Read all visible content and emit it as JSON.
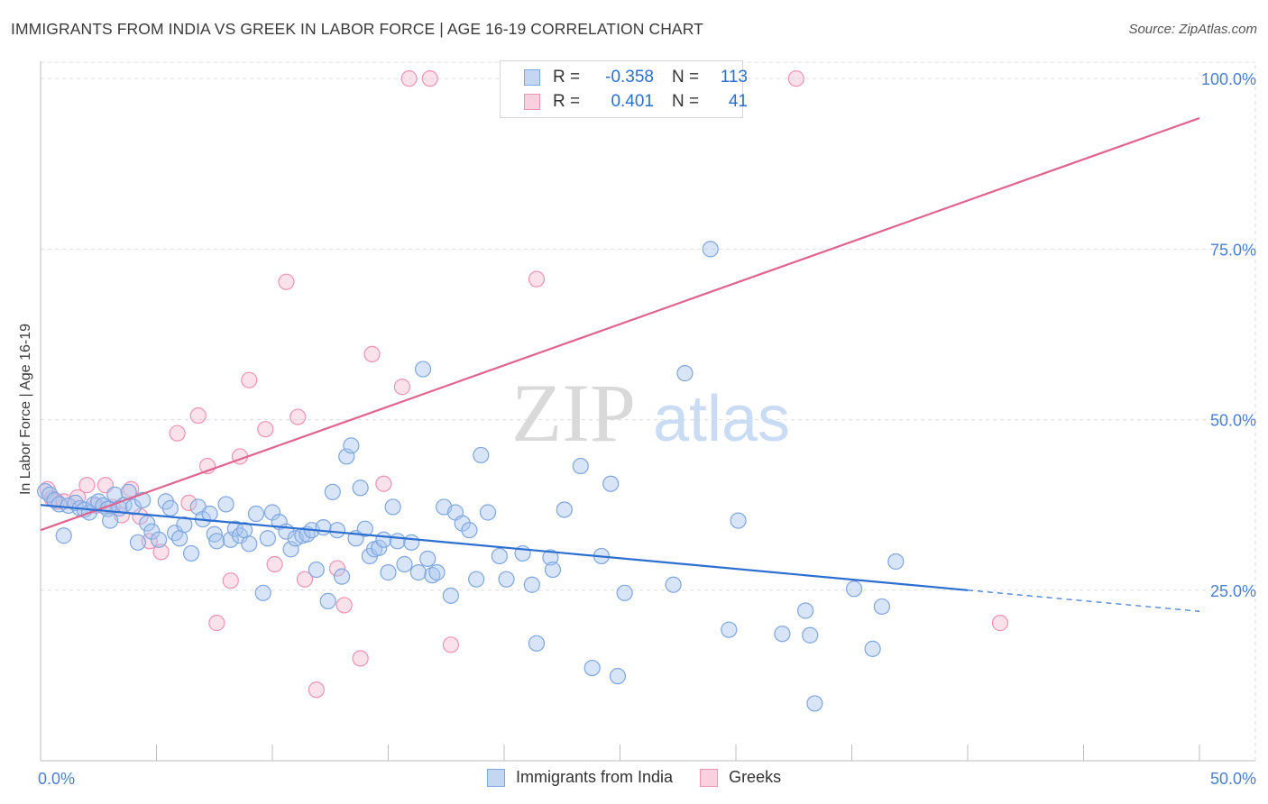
{
  "title": "IMMIGRANTS FROM INDIA VS GREEK IN LABOR FORCE | AGE 16-19 CORRELATION CHART",
  "source": "Source: ZipAtlas.com",
  "watermark": {
    "zip": "ZIP",
    "atlas": "atlas"
  },
  "legend": {
    "rows": [
      {
        "r_label": "R =",
        "r_value": "-0.358",
        "n_label": "N =",
        "n_value": "113"
      },
      {
        "r_label": "R =",
        "r_value": "0.401",
        "n_label": "N =",
        "n_value": "41"
      }
    ]
  },
  "bottom_legend": [
    "Immigrants from India",
    "Greeks"
  ],
  "colors": {
    "india_fill": "#a9c6ef",
    "india_stroke": "#7ea6e0",
    "india_line": "#2d6fd1",
    "greek_fill": "#f6bfd1",
    "greek_stroke": "#ee93b1",
    "greek_line": "#e0648e",
    "axis_text": "#4a7fd4",
    "grid": "#dddddd"
  },
  "chart_data": {
    "type": "scatter",
    "title": "IMMIGRANTS FROM INDIA VS GREEK IN LABOR FORCE | AGE 16-19 CORRELATION CHART",
    "xlabel": "",
    "ylabel": "In Labor Force | Age 16-19",
    "xlim": [
      0,
      50
    ],
    "ylim": [
      0,
      102
    ],
    "x_tick_labels": [
      "0.0%",
      "50.0%"
    ],
    "y_ticks": [
      25,
      50,
      75,
      100
    ],
    "y_tick_labels": [
      "25.0%",
      "50.0%",
      "75.0%",
      "100.0%"
    ],
    "grid": true,
    "series": [
      {
        "name": "Immigrants from India",
        "r": -0.358,
        "n": 113,
        "trend": {
          "x0": 0,
          "y0": 37.5,
          "x1": 40,
          "y1": 25.0,
          "dash_to_x": 50,
          "dash_to_y": 21.9
        },
        "points": [
          [
            0.2,
            39.5
          ],
          [
            0.4,
            39
          ],
          [
            0.6,
            38.2
          ],
          [
            0.8,
            37.6
          ],
          [
            1.0,
            33
          ],
          [
            1.2,
            37.4
          ],
          [
            1.5,
            37.8
          ],
          [
            1.7,
            37
          ],
          [
            1.9,
            36.8
          ],
          [
            2.1,
            36.4
          ],
          [
            2.3,
            37.6
          ],
          [
            2.5,
            38
          ],
          [
            2.7,
            37.4
          ],
          [
            2.9,
            36.9
          ],
          [
            3.0,
            35.2
          ],
          [
            3.2,
            39
          ],
          [
            3.4,
            37
          ],
          [
            3.6,
            37.5
          ],
          [
            3.8,
            39.4
          ],
          [
            4.0,
            37.2
          ],
          [
            4.2,
            32
          ],
          [
            4.4,
            38.2
          ],
          [
            4.6,
            34.8
          ],
          [
            4.8,
            33.6
          ],
          [
            5.1,
            32.4
          ],
          [
            5.4,
            38
          ],
          [
            5.6,
            37
          ],
          [
            5.8,
            33.4
          ],
          [
            6.0,
            32.6
          ],
          [
            6.2,
            34.6
          ],
          [
            6.5,
            30.4
          ],
          [
            6.8,
            37.2
          ],
          [
            7.0,
            35.4
          ],
          [
            7.3,
            36.2
          ],
          [
            7.5,
            33.2
          ],
          [
            7.6,
            32.2
          ],
          [
            8.0,
            37.6
          ],
          [
            8.2,
            32.4
          ],
          [
            8.4,
            34
          ],
          [
            8.6,
            33
          ],
          [
            8.8,
            33.8
          ],
          [
            9.0,
            31.8
          ],
          [
            9.3,
            36.2
          ],
          [
            9.6,
            24.6
          ],
          [
            9.8,
            32.6
          ],
          [
            10.0,
            36.4
          ],
          [
            10.3,
            35
          ],
          [
            10.6,
            33.6
          ],
          [
            10.8,
            31
          ],
          [
            11.0,
            32.6
          ],
          [
            11.3,
            33
          ],
          [
            11.5,
            33.2
          ],
          [
            11.7,
            33.8
          ],
          [
            11.9,
            28
          ],
          [
            12.2,
            34.2
          ],
          [
            12.4,
            23.4
          ],
          [
            12.6,
            39.4
          ],
          [
            12.8,
            33.8
          ],
          [
            13.0,
            27
          ],
          [
            13.2,
            44.6
          ],
          [
            13.4,
            46.2
          ],
          [
            13.6,
            32.6
          ],
          [
            13.8,
            40
          ],
          [
            14.0,
            34
          ],
          [
            14.2,
            30
          ],
          [
            14.4,
            31
          ],
          [
            14.6,
            31.2
          ],
          [
            14.8,
            32.4
          ],
          [
            15.0,
            27.6
          ],
          [
            15.2,
            37.2
          ],
          [
            15.4,
            32.2
          ],
          [
            15.7,
            28.8
          ],
          [
            16.0,
            32
          ],
          [
            16.3,
            27.6
          ],
          [
            16.5,
            57.4
          ],
          [
            16.7,
            29.6
          ],
          [
            16.9,
            27.2
          ],
          [
            17.1,
            27.6
          ],
          [
            17.4,
            37.2
          ],
          [
            17.7,
            24.2
          ],
          [
            17.9,
            36.4
          ],
          [
            18.2,
            34.8
          ],
          [
            18.5,
            33.8
          ],
          [
            18.8,
            26.6
          ],
          [
            19.0,
            44.8
          ],
          [
            19.3,
            36.4
          ],
          [
            19.8,
            30
          ],
          [
            20.1,
            26.6
          ],
          [
            20.8,
            30.4
          ],
          [
            21.2,
            25.8
          ],
          [
            21.4,
            17.2
          ],
          [
            22.0,
            29.8
          ],
          [
            22.1,
            28
          ],
          [
            22.6,
            36.8
          ],
          [
            23.3,
            43.2
          ],
          [
            23.8,
            13.6
          ],
          [
            24.2,
            30
          ],
          [
            24.6,
            40.6
          ],
          [
            24.9,
            12.4
          ],
          [
            25.2,
            24.6
          ],
          [
            27.3,
            25.8
          ],
          [
            27.8,
            56.8
          ],
          [
            28.9,
            75
          ],
          [
            29.7,
            19.2
          ],
          [
            30.1,
            35.2
          ],
          [
            32.0,
            18.6
          ],
          [
            33.0,
            22
          ],
          [
            33.2,
            18.4
          ],
          [
            33.4,
            8.4
          ],
          [
            35.1,
            25.2
          ],
          [
            35.9,
            16.4
          ],
          [
            36.3,
            22.6
          ],
          [
            36.9,
            29.2
          ]
        ]
      },
      {
        "name": "Greeks",
        "r": 0.401,
        "n": 41,
        "trend": {
          "x0": 0,
          "y0": 33.8,
          "x1": 50,
          "y1": 94.2
        },
        "points": [
          [
            0.3,
            39.8
          ],
          [
            0.5,
            38.4
          ],
          [
            0.7,
            38
          ],
          [
            1.0,
            38
          ],
          [
            1.6,
            38.6
          ],
          [
            2.0,
            40.4
          ],
          [
            2.4,
            37.4
          ],
          [
            2.8,
            40.4
          ],
          [
            3.1,
            37.2
          ],
          [
            3.5,
            36
          ],
          [
            3.9,
            39.8
          ],
          [
            4.3,
            35.8
          ],
          [
            4.7,
            32.2
          ],
          [
            5.2,
            30.6
          ],
          [
            5.9,
            48
          ],
          [
            6.4,
            37.8
          ],
          [
            6.8,
            50.6
          ],
          [
            7.2,
            43.2
          ],
          [
            7.6,
            20.2
          ],
          [
            8.2,
            26.4
          ],
          [
            8.6,
            44.6
          ],
          [
            9.0,
            55.8
          ],
          [
            9.7,
            48.6
          ],
          [
            10.1,
            28.8
          ],
          [
            10.6,
            70.2
          ],
          [
            11.1,
            50.4
          ],
          [
            11.4,
            26.6
          ],
          [
            11.9,
            10.4
          ],
          [
            12.8,
            28.2
          ],
          [
            13.1,
            22.8
          ],
          [
            13.8,
            15
          ],
          [
            14.3,
            59.6
          ],
          [
            14.8,
            40.6
          ],
          [
            15.6,
            54.8
          ],
          [
            15.9,
            100
          ],
          [
            16.8,
            100
          ],
          [
            17.7,
            17
          ],
          [
            20.2,
            100
          ],
          [
            21.4,
            70.6
          ],
          [
            32.6,
            100
          ],
          [
            41.4,
            20.2
          ]
        ]
      }
    ]
  }
}
